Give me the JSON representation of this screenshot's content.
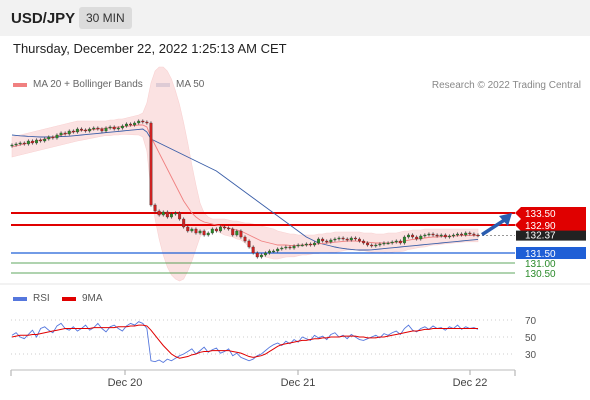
{
  "header": {
    "pair": "USD/JPY",
    "interval": "30 MIN"
  },
  "datetime": "Thursday, December 22, 2022 1:25:13 AM CET",
  "legend": {
    "ma20": "MA 20 + Bollinger Bands",
    "ma50": "MA 50",
    "credit": "Research © 2022 Trading Central",
    "rsi": "RSI",
    "ma9": "9MA"
  },
  "colors": {
    "ma20": "#f08080",
    "ma50": "#3a5ea8",
    "bollinger": "#fbdede",
    "resistance": "#e00000",
    "support_strong": "#1f5fd6",
    "support": "#2a8a2a",
    "current": "#222222",
    "rsi": "#5577dd",
    "rsi_ma": "#e00000"
  },
  "chart_data": [
    {
      "type": "candlestick",
      "x_ticks": [
        "Dec 20",
        "Dec 21",
        "Dec 22"
      ],
      "levels": [
        {
          "value": 133.5,
          "label": "133.50",
          "kind": "resistance",
          "color": "#e00000"
        },
        {
          "value": 132.9,
          "label": "132.90",
          "kind": "resistance",
          "color": "#e00000"
        },
        {
          "value": 132.37,
          "label": "132.37",
          "kind": "current",
          "color": "#222222"
        },
        {
          "value": 131.5,
          "label": "131.50",
          "kind": "pivot",
          "color": "#1f5fd6"
        },
        {
          "value": 131.0,
          "label": "131.00",
          "kind": "support",
          "color": "#2a8a2a"
        },
        {
          "value": 130.5,
          "label": "130.50",
          "kind": "support",
          "color": "#2a8a2a"
        }
      ],
      "closes": [
        136.9,
        136.95,
        137.0,
        136.95,
        137.1,
        137.0,
        137.15,
        137.1,
        137.2,
        137.3,
        137.25,
        137.4,
        137.5,
        137.45,
        137.6,
        137.55,
        137.7,
        137.65,
        137.6,
        137.7,
        137.75,
        137.7,
        137.6,
        137.75,
        137.8,
        137.7,
        137.75,
        137.85,
        137.95,
        137.9,
        138.0,
        138.1,
        138.05,
        138.0,
        133.9,
        133.6,
        133.4,
        133.55,
        133.3,
        133.45,
        133.5,
        133.2,
        132.8,
        132.6,
        132.7,
        132.5,
        132.6,
        132.4,
        132.5,
        132.7,
        132.6,
        132.8,
        132.75,
        132.7,
        132.4,
        132.6,
        132.3,
        132.1,
        131.8,
        131.5,
        131.3,
        131.4,
        131.5,
        131.6,
        131.6,
        131.7,
        131.75,
        131.8,
        131.75,
        131.85,
        131.9,
        131.9,
        131.95,
        131.9,
        132.0,
        132.2,
        132.1,
        132.05,
        132.15,
        132.2,
        132.25,
        132.2,
        132.15,
        132.25,
        132.2,
        132.1,
        132.0,
        131.9,
        131.85,
        131.9,
        131.95,
        132.0,
        132.0,
        132.05,
        132.1,
        132.0,
        132.3,
        132.4,
        132.3,
        132.2,
        132.35,
        132.4,
        132.45,
        132.4,
        132.35,
        132.4,
        132.3,
        132.35,
        132.4,
        132.45,
        132.4,
        132.5,
        132.45,
        132.4,
        132.37
      ],
      "ma20": [
        136.8,
        136.85,
        136.9,
        136.95,
        137.0,
        137.05,
        137.1,
        137.15,
        137.2,
        137.25,
        137.3,
        137.35,
        137.4,
        137.45,
        137.5,
        137.55,
        137.6,
        137.62,
        137.64,
        137.66,
        137.68,
        137.7,
        137.72,
        137.74,
        137.76,
        137.78,
        137.8,
        137.82,
        137.84,
        137.86,
        137.88,
        137.9,
        137.9,
        137.8,
        137.3,
        136.9,
        136.5,
        136.1,
        135.7,
        135.3,
        134.9,
        134.5,
        134.1,
        133.8,
        133.5,
        133.3,
        133.15,
        133.05,
        133.0,
        132.95,
        132.9,
        132.85,
        132.8,
        132.75,
        132.7,
        132.65,
        132.6,
        132.5,
        132.4,
        132.3,
        132.2,
        132.1,
        132.05,
        132.0,
        131.95,
        131.9,
        131.9,
        131.9,
        131.88,
        131.88,
        131.88,
        131.9,
        131.9,
        131.92,
        131.94,
        131.96,
        131.98,
        132.0,
        132.02,
        132.04,
        132.06,
        132.08,
        132.1,
        132.1,
        132.1,
        132.08,
        132.06,
        132.04,
        132.02,
        132.0,
        132.0,
        132.0,
        132.0,
        132.02,
        132.04,
        132.06,
        132.1,
        132.14,
        132.18,
        132.2,
        132.22,
        132.25,
        132.28,
        132.3,
        132.3,
        132.32,
        132.33,
        132.34,
        132.35,
        132.36,
        132.37,
        132.38,
        132.38,
        132.38,
        132.38
      ],
      "bb_upper": [
        137.3,
        137.35,
        137.4,
        137.45,
        137.5,
        137.55,
        137.6,
        137.65,
        137.7,
        137.75,
        137.8,
        137.85,
        137.9,
        137.95,
        138.0,
        138.05,
        138.1,
        138.1,
        138.1,
        138.1,
        138.1,
        138.1,
        138.1,
        138.1,
        138.15,
        138.15,
        138.2,
        138.2,
        138.25,
        138.3,
        138.35,
        138.4,
        138.5,
        139.0,
        140.0,
        140.6,
        140.8,
        140.8,
        140.6,
        140.2,
        139.6,
        138.9,
        138.0,
        137.0,
        135.9,
        134.9,
        134.0,
        133.5,
        133.3,
        133.2,
        133.2,
        133.2,
        133.2,
        133.15,
        133.1,
        133.1,
        133.05,
        133.0,
        133.0,
        132.95,
        132.9,
        132.85,
        132.8,
        132.75,
        132.7,
        132.6,
        132.55,
        132.5,
        132.45,
        132.45,
        132.4,
        132.4,
        132.4,
        132.4,
        132.4,
        132.45,
        132.45,
        132.5,
        132.5,
        132.55,
        132.55,
        132.55,
        132.55,
        132.55,
        132.55,
        132.55,
        132.5,
        132.5,
        132.5,
        132.45,
        132.45,
        132.45,
        132.5,
        132.5,
        132.5,
        132.55,
        132.6,
        132.6,
        132.65,
        132.65,
        132.65,
        132.7,
        132.7,
        132.7,
        132.7,
        132.7,
        132.7,
        132.7,
        132.7,
        132.7,
        132.7,
        132.7,
        132.7,
        132.7,
        132.7
      ],
      "bb_lower": [
        136.3,
        136.35,
        136.4,
        136.45,
        136.5,
        136.55,
        136.6,
        136.65,
        136.7,
        136.75,
        136.8,
        136.85,
        136.9,
        136.95,
        137.0,
        137.05,
        137.1,
        137.14,
        137.18,
        137.22,
        137.26,
        137.3,
        137.34,
        137.38,
        137.37,
        137.41,
        137.4,
        137.44,
        137.43,
        137.42,
        137.41,
        137.4,
        137.3,
        136.6,
        134.6,
        133.2,
        132.2,
        131.4,
        130.8,
        130.4,
        130.2,
        130.1,
        130.2,
        130.6,
        131.1,
        131.7,
        132.3,
        132.6,
        132.7,
        132.7,
        132.6,
        132.5,
        132.4,
        132.35,
        132.3,
        132.2,
        132.15,
        132.0,
        131.8,
        131.65,
        131.5,
        131.35,
        131.3,
        131.25,
        131.2,
        131.2,
        131.25,
        131.3,
        131.31,
        131.31,
        131.36,
        131.4,
        131.4,
        131.44,
        131.48,
        131.47,
        131.51,
        131.5,
        131.54,
        131.53,
        131.57,
        131.61,
        131.65,
        131.65,
        131.65,
        131.61,
        131.62,
        131.58,
        131.54,
        131.55,
        131.55,
        131.55,
        131.5,
        131.54,
        131.58,
        131.57,
        131.6,
        131.68,
        131.71,
        131.75,
        131.79,
        131.8,
        131.86,
        131.9,
        131.9,
        131.94,
        131.96,
        131.98,
        132.0,
        132.02,
        132.04,
        132.06,
        132.06,
        132.06,
        132.06
      ],
      "ma50": [
        137.4,
        137.38,
        137.36,
        137.35,
        137.33,
        137.32,
        137.31,
        137.3,
        137.3,
        137.3,
        137.3,
        137.31,
        137.32,
        137.33,
        137.34,
        137.36,
        137.38,
        137.4,
        137.42,
        137.44,
        137.46,
        137.48,
        137.5,
        137.52,
        137.54,
        137.56,
        137.58,
        137.6,
        137.62,
        137.64,
        137.66,
        137.68,
        137.7,
        137.55,
        137.2,
        137.1,
        137.0,
        136.9,
        136.8,
        136.7,
        136.6,
        136.5,
        136.4,
        136.3,
        136.2,
        136.1,
        136.0,
        135.9,
        135.8,
        135.7,
        135.6,
        135.45,
        135.3,
        135.15,
        135.0,
        134.85,
        134.7,
        134.55,
        134.4,
        134.25,
        134.1,
        133.95,
        133.8,
        133.65,
        133.5,
        133.35,
        133.2,
        133.05,
        132.9,
        132.75,
        132.6,
        132.45,
        132.3,
        132.2,
        132.1,
        132.0,
        131.95,
        131.9,
        131.85,
        131.8,
        131.76,
        131.73,
        131.7,
        131.68,
        131.66,
        131.65,
        131.65,
        131.65,
        131.66,
        131.68,
        131.7,
        131.72,
        131.74,
        131.76,
        131.78,
        131.8,
        131.82,
        131.84,
        131.86,
        131.88,
        131.9,
        131.92,
        131.94,
        131.96,
        131.98,
        132.0,
        132.02,
        132.04,
        132.06,
        132.08,
        132.1,
        132.12,
        132.14,
        132.16,
        132.18
      ],
      "forecast_arrow": {
        "from": 132.37,
        "to": 133.5
      }
    },
    {
      "type": "line",
      "name": "RSI",
      "yticks": [
        70,
        50,
        30
      ],
      "ylim": [
        20,
        80
      ],
      "rsi": [
        52,
        55,
        50,
        48,
        53,
        58,
        50,
        60,
        62,
        58,
        55,
        63,
        66,
        60,
        58,
        62,
        57,
        60,
        64,
        58,
        61,
        66,
        60,
        56,
        62,
        64,
        60,
        57,
        63,
        66,
        64,
        68,
        66,
        60,
        22,
        21,
        23,
        20,
        24,
        22,
        25,
        28,
        30,
        33,
        36,
        30,
        34,
        38,
        32,
        35,
        37,
        31,
        33,
        36,
        28,
        31,
        26,
        24,
        22,
        24,
        28,
        30,
        34,
        38,
        41,
        43,
        40,
        45,
        42,
        47,
        44,
        50,
        48,
        46,
        52,
        49,
        51,
        47,
        53,
        55,
        50,
        52,
        48,
        53,
        50,
        47,
        46,
        48,
        50,
        52,
        49,
        54,
        52,
        55,
        57,
        53,
        60,
        64,
        58,
        56,
        60,
        62,
        59,
        63,
        60,
        61,
        58,
        62,
        60,
        64,
        59,
        62,
        60,
        61,
        59
      ],
      "rsi_ma": [
        50,
        51,
        52,
        52,
        52,
        53,
        53,
        54,
        55,
        56,
        57,
        58,
        59,
        60,
        60,
        60,
        60,
        60,
        60,
        60,
        61,
        61,
        61,
        61,
        61,
        61,
        62,
        62,
        62,
        63,
        63,
        64,
        64,
        63,
        58,
        52,
        46,
        40,
        35,
        30,
        27,
        25,
        26,
        27,
        29,
        30,
        32,
        33,
        33,
        34,
        34,
        34,
        34,
        34,
        33,
        32,
        31,
        29,
        27,
        26,
        27,
        28,
        30,
        33,
        36,
        39,
        41,
        42,
        43,
        44,
        45,
        46,
        46,
        47,
        48,
        48,
        49,
        49,
        50,
        50,
        50,
        51,
        51,
        51,
        51,
        50,
        50,
        49,
        49,
        49,
        50,
        50,
        51,
        52,
        53,
        54,
        55,
        56,
        57,
        57,
        58,
        59,
        59,
        60,
        60,
        60,
        60,
        60,
        60,
        60,
        60,
        60,
        60,
        60,
        60
      ]
    }
  ]
}
